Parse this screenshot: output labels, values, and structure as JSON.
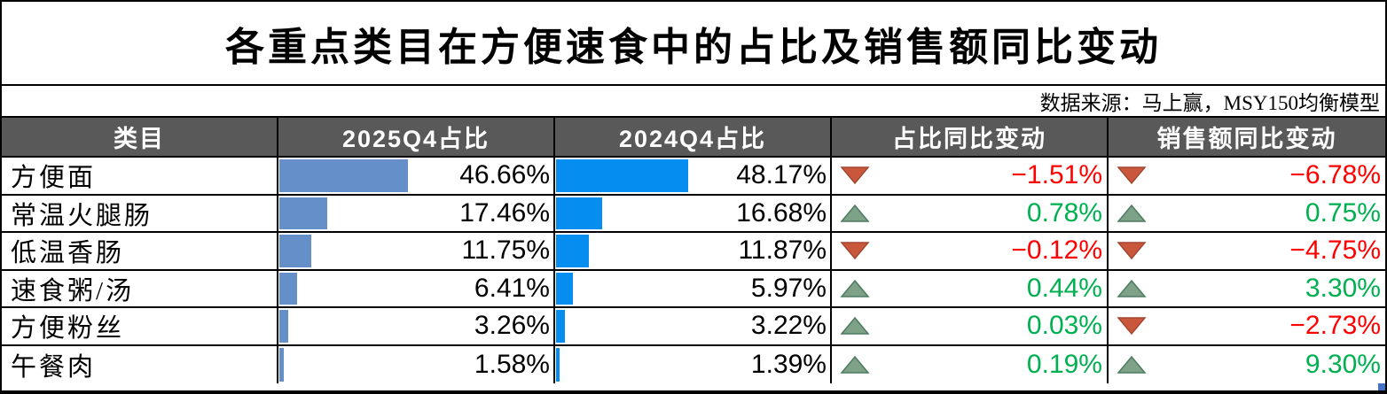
{
  "title": "各重点类目在方便速食中的占比及销售额同比变动",
  "source": "数据来源：马上赢，MSY150均衡模型",
  "columns": [
    "类目",
    "2025Q4占比",
    "2024Q4占比",
    "占比同比变动",
    "销售额同比变动"
  ],
  "rows": [
    {
      "category": "方便面",
      "q4_2025": "46.66%",
      "q4_2025_value": 46.66,
      "q4_2024": "48.17%",
      "q4_2024_value": 48.17,
      "share_change": "−1.51%",
      "sales_change": "−6.78%"
    },
    {
      "category": "常温火腿肠",
      "q4_2025": "17.46%",
      "q4_2025_value": 17.46,
      "q4_2024": "16.68%",
      "q4_2024_value": 16.68,
      "share_change": "0.78%",
      "sales_change": "0.75%"
    },
    {
      "category": "低温香肠",
      "q4_2025": "11.75%",
      "q4_2025_value": 11.75,
      "q4_2024": "11.87%",
      "q4_2024_value": 11.87,
      "share_change": "−0.12%",
      "sales_change": "−4.75%"
    },
    {
      "category": "速食粥/汤",
      "q4_2025": "6.41%",
      "q4_2025_value": 6.41,
      "q4_2024": "5.97%",
      "q4_2024_value": 5.97,
      "share_change": "0.44%",
      "sales_change": "3.30%"
    },
    {
      "category": "方便粉丝",
      "q4_2025": "3.26%",
      "q4_2025_value": 3.26,
      "q4_2024": "3.22%",
      "q4_2024_value": 3.22,
      "share_change": "0.03%",
      "sales_change": "−2.73%"
    },
    {
      "category": "午餐肉",
      "q4_2025": "1.58%",
      "q4_2025_value": 1.58,
      "q4_2024": "1.39%",
      "q4_2024_value": 1.39,
      "share_change": "0.19%",
      "sales_change": "9.30%"
    }
  ],
  "colors": {
    "header_bg": "#595959",
    "header_text": "#FFFFFF",
    "bar_2025": "#648FC8",
    "bar_2024": "#058DF0",
    "negative_text": "#FF0000",
    "positive_text": "#00B050",
    "arrow_down_fill": "#C9573C",
    "arrow_down_stroke": "#A34731",
    "arrow_up_fill": "#7EA287",
    "arrow_up_stroke": "#4E7A60",
    "selection_handle": "#4472C4",
    "border": "#000000"
  },
  "icons": {
    "arrow_up": "triangle-up-icon",
    "arrow_down": "triangle-down-icon",
    "selection_handle": "selection-handle-icon"
  },
  "chart_data": {
    "type": "table",
    "title": "各重点类目在方便速食中的占比及销售额同比变动",
    "source": "数据来源：马上赢，MSY150均衡模型",
    "categories": [
      "方便面",
      "常温火腿肠",
      "低温香肠",
      "速食粥/汤",
      "方便粉丝",
      "午餐肉"
    ],
    "series": [
      {
        "name": "2025Q4占比",
        "unit": "%",
        "style": "databar-muted-blue",
        "values": [
          46.66,
          17.46,
          11.75,
          6.41,
          3.26,
          1.58
        ]
      },
      {
        "name": "2024Q4占比",
        "unit": "%",
        "style": "databar-bright-blue",
        "values": [
          48.17,
          16.68,
          11.87,
          5.97,
          3.22,
          1.39
        ]
      },
      {
        "name": "占比同比变动",
        "unit": "%",
        "style": "icon-arrow",
        "values": [
          -1.51,
          0.78,
          -0.12,
          0.44,
          0.03,
          0.19
        ]
      },
      {
        "name": "销售额同比变动",
        "unit": "%",
        "style": "icon-arrow",
        "values": [
          -6.78,
          0.75,
          -4.75,
          3.3,
          -2.73,
          9.3
        ]
      }
    ],
    "databar_scale": [
      0,
      100
    ]
  }
}
